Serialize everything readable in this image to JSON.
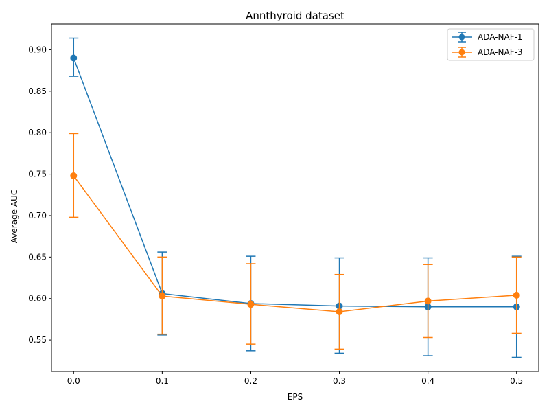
{
  "chart_data": {
    "type": "line",
    "title": "Annthyroid dataset",
    "xlabel": "EPS",
    "ylabel": "Average AUC",
    "x": [
      0.0,
      0.1,
      0.2,
      0.3,
      0.4,
      0.5
    ],
    "x_ticks": [
      "0.0",
      "0.1",
      "0.2",
      "0.3",
      "0.4",
      "0.5"
    ],
    "y_ticks": [
      "0.55",
      "0.60",
      "0.65",
      "0.70",
      "0.75",
      "0.80",
      "0.85",
      "0.90"
    ],
    "xlim": [
      -0.025,
      0.525
    ],
    "ylim": [
      0.512,
      0.931
    ],
    "grid": false,
    "legend_position": "top-right",
    "series": [
      {
        "name": "ADA-NAF-1",
        "color": "#1f77b4",
        "values": [
          0.89,
          0.606,
          0.594,
          0.591,
          0.59,
          0.59
        ],
        "err_low": [
          0.868,
          0.556,
          0.537,
          0.534,
          0.531,
          0.529
        ],
        "err_high": [
          0.914,
          0.656,
          0.651,
          0.649,
          0.649,
          0.651
        ]
      },
      {
        "name": "ADA-NAF-3",
        "color": "#ff7f0e",
        "values": [
          0.748,
          0.603,
          0.593,
          0.584,
          0.597,
          0.604
        ],
        "err_low": [
          0.698,
          0.557,
          0.545,
          0.539,
          0.553,
          0.558
        ],
        "err_high": [
          0.799,
          0.65,
          0.642,
          0.629,
          0.641,
          0.65
        ]
      }
    ]
  }
}
